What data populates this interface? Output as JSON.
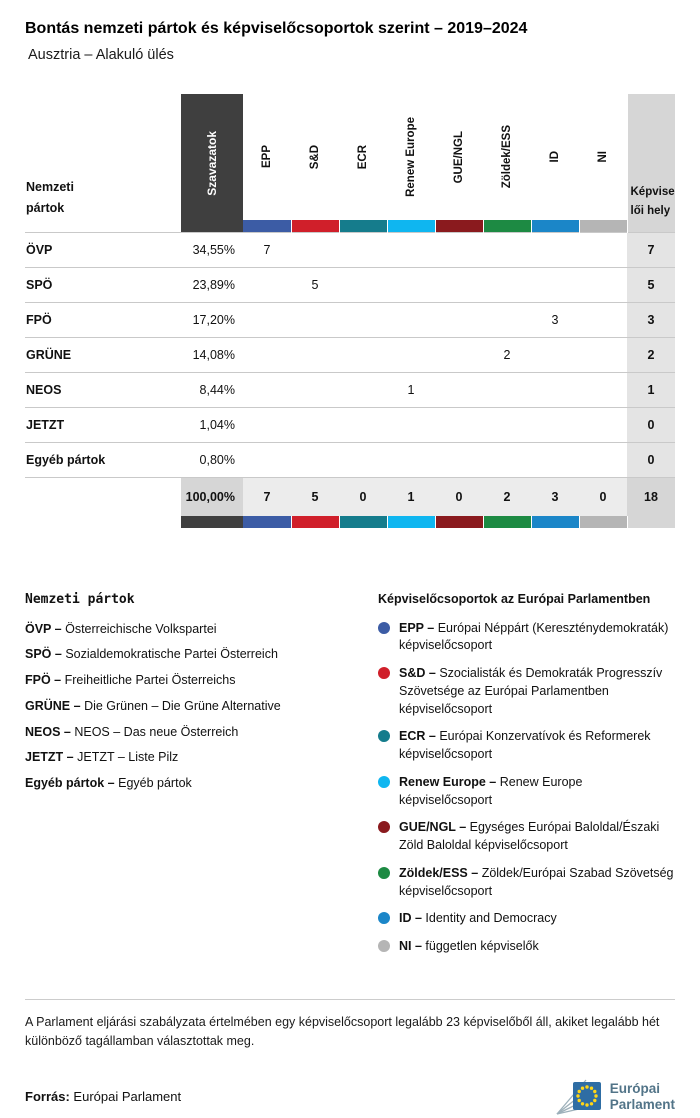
{
  "header": {
    "title": "Bontás nemzeti pártok és képviselőcsoportok szerint – 2019–2024",
    "subtitle": "Ausztria – Alakuló ülés"
  },
  "chart_data": {
    "type": "table",
    "title": "Bontás nemzeti pártok és képviselőcsoportok szerint – 2019–2024",
    "subtitle": "Ausztria – Alakuló ülés",
    "first_col_header": [
      "Nemzeti",
      "pártok"
    ],
    "votes_header": "Szavazatok",
    "seats_header": [
      "Képvise",
      "lői hely"
    ],
    "votes_header_bg": "#3f3f3f",
    "seats_col_bg": "#e4e4e4",
    "groups": [
      {
        "label": "EPP",
        "color": "#3c5ca5"
      },
      {
        "label": "S&D",
        "color": "#d01f2a"
      },
      {
        "label": "ECR",
        "color": "#157c8c"
      },
      {
        "label": "Renew Europe",
        "color": "#0fb6f0"
      },
      {
        "label": "GUE/NGL",
        "color": "#8a1a1e"
      },
      {
        "label": "Zöldek/ESS",
        "color": "#1d8a43"
      },
      {
        "label": "ID",
        "color": "#1b86c8"
      },
      {
        "label": "NI",
        "color": "#b5b5b5"
      }
    ],
    "rows": [
      {
        "party": "ÖVP",
        "votes": "34,55%",
        "group_seats": [
          "7",
          "",
          "",
          "",
          "",
          "",
          "",
          ""
        ],
        "seats": "7"
      },
      {
        "party": "SPÖ",
        "votes": "23,89%",
        "group_seats": [
          "",
          "5",
          "",
          "",
          "",
          "",
          "",
          ""
        ],
        "seats": "5"
      },
      {
        "party": "FPÖ",
        "votes": "17,20%",
        "group_seats": [
          "",
          "",
          "",
          "",
          "",
          "",
          "3",
          ""
        ],
        "seats": "3"
      },
      {
        "party": "GRÜNE",
        "votes": "14,08%",
        "group_seats": [
          "",
          "",
          "",
          "",
          "",
          "2",
          "",
          ""
        ],
        "seats": "2"
      },
      {
        "party": "NEOS",
        "votes": "8,44%",
        "group_seats": [
          "",
          "",
          "",
          "1",
          "",
          "",
          "",
          ""
        ],
        "seats": "1"
      },
      {
        "party": "JETZT",
        "votes": "1,04%",
        "group_seats": [
          "",
          "",
          "",
          "",
          "",
          "",
          "",
          ""
        ],
        "seats": "0"
      },
      {
        "party": "Egyéb pártok",
        "votes": "0,80%",
        "group_seats": [
          "",
          "",
          "",
          "",
          "",
          "",
          "",
          ""
        ],
        "seats": "0"
      }
    ],
    "total": {
      "votes": "100,00%",
      "group_seats": [
        "7",
        "5",
        "0",
        "1",
        "0",
        "2",
        "3",
        "0"
      ],
      "seats": "18"
    }
  },
  "national_legend": {
    "title": "Nemzeti pártok",
    "separator": "–",
    "items": [
      {
        "abbr": "ÖVP",
        "name": "Österreichische Volkspartei"
      },
      {
        "abbr": "SPÖ",
        "name": "Sozialdemokratische Partei Österreich"
      },
      {
        "abbr": "FPÖ",
        "name": "Freiheitliche Partei Österreichs"
      },
      {
        "abbr": "GRÜNE",
        "name": "Die Grünen – Die Grüne Alternative"
      },
      {
        "abbr": "NEOS",
        "name": "NEOS – Das neue Österreich"
      },
      {
        "abbr": "JETZT",
        "name": "JETZT – Liste Pilz"
      },
      {
        "abbr": "Egyéb pártok",
        "name": "Egyéb pártok"
      }
    ]
  },
  "groups_legend": {
    "title": "Képviselőcsoportok az Európai Parlamentben",
    "separator": "–",
    "items": [
      {
        "abbr": "EPP",
        "color": "#3c5ca5",
        "desc": "Európai Néppárt (Kereszténydemokraták) képviselőcsoport"
      },
      {
        "abbr": "S&D",
        "color": "#d01f2a",
        "desc": "Szocialisták és Demokraták Progresszív Szövetsége az Európai Parlamentben képviselőcsoport"
      },
      {
        "abbr": "ECR",
        "color": "#157c8c",
        "desc": "Európai Konzervatívok és Reformerek képviselőcsoport"
      },
      {
        "abbr": "Renew Europe",
        "color": "#0fb6f0",
        "desc": "Renew Europe képviselőcsoport"
      },
      {
        "abbr": "GUE/NGL",
        "color": "#8a1a1e",
        "desc": "Egységes Európai Baloldal/Északi Zöld Baloldal képviselőcsoport"
      },
      {
        "abbr": "Zöldek/ESS",
        "color": "#1d8a43",
        "desc": "Zöldek/Európai Szabad Szövetség képviselőcsoport"
      },
      {
        "abbr": "ID",
        "color": "#1b86c8",
        "desc": "Identity and Democracy"
      },
      {
        "abbr": "NI",
        "color": "#b5b5b5",
        "desc": "független képviselők"
      }
    ]
  },
  "footnote": "A Parlament eljárási szabályzata értelmében egy képviselőcsoport legalább 23 képviselőből áll, akiket legalább hét különböző tagállamban választottak meg.",
  "footer": {
    "source_label": "Forrás:",
    "source_value": "Európai Parlament",
    "logo_line1": "Európai",
    "logo_line2": "Parlament"
  }
}
